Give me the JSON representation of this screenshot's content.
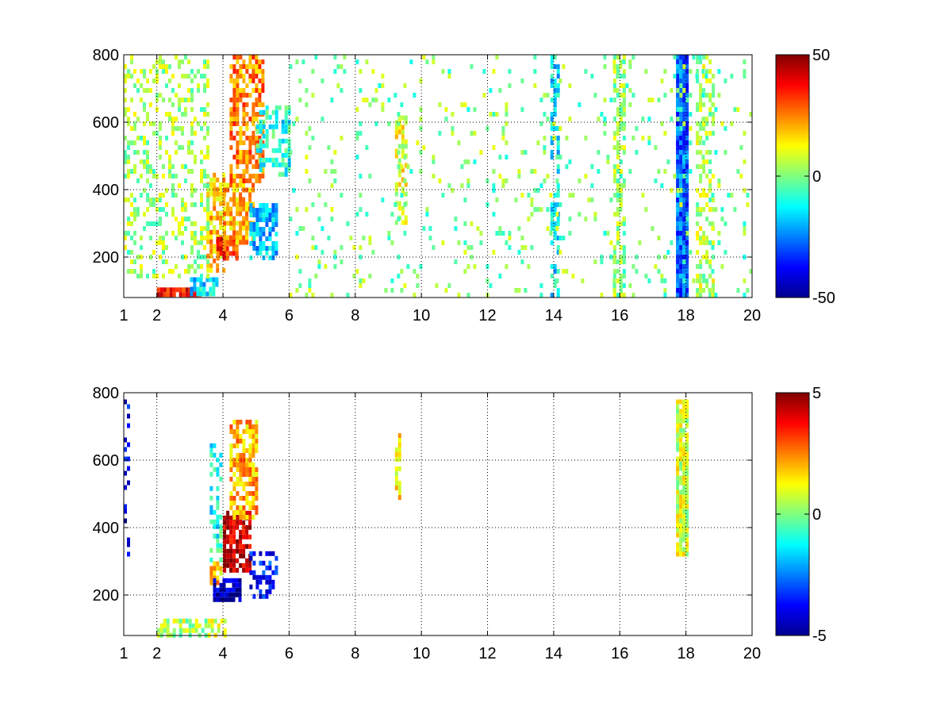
{
  "chart_data": [
    {
      "type": "heatmap",
      "title": "",
      "xlabel": "",
      "ylabel": "",
      "xlim": [
        1,
        20
      ],
      "ylim": [
        80,
        800
      ],
      "grid": true,
      "x_ticks": [
        1,
        2,
        4,
        6,
        8,
        10,
        12,
        14,
        16,
        18,
        20
      ],
      "y_ticks": [
        200,
        400,
        600,
        800
      ],
      "colorbar": {
        "min": -50,
        "max": 50,
        "ticks": [
          50,
          0,
          -50
        ],
        "colormap": "jet"
      },
      "regions": [
        {
          "x": [
            2.0,
            3.3
          ],
          "y": [
            85,
            110
          ],
          "value": 35,
          "density": 0.9
        },
        {
          "x": [
            3.0,
            3.8
          ],
          "y": [
            95,
            140
          ],
          "value": -15,
          "density": 0.7
        },
        {
          "x": [
            3.5,
            4.0
          ],
          "y": [
            160,
            450
          ],
          "value": 18,
          "density": 0.7
        },
        {
          "x": [
            3.8,
            4.4
          ],
          "y": [
            200,
            260
          ],
          "value": 33,
          "density": 0.8
        },
        {
          "x": [
            4.0,
            4.9
          ],
          "y": [
            250,
            420
          ],
          "value": 20,
          "density": 0.7
        },
        {
          "x": [
            4.2,
            5.2
          ],
          "y": [
            420,
            800
          ],
          "value": 25,
          "density": 0.65
        },
        {
          "x": [
            4.8,
            5.6
          ],
          "y": [
            200,
            360
          ],
          "value": -18,
          "density": 0.7
        },
        {
          "x": [
            5.0,
            6.0
          ],
          "y": [
            450,
            650
          ],
          "value": -10,
          "density": 0.5
        },
        {
          "x": [
            1.0,
            3.5
          ],
          "y": [
            150,
            800
          ],
          "value": 3,
          "density": 0.3
        },
        {
          "x": [
            9.2,
            9.5
          ],
          "y": [
            300,
            620
          ],
          "value": 10,
          "density": 0.6
        },
        {
          "x": [
            13.9,
            14.1
          ],
          "y": [
            80,
            800
          ],
          "value": -15,
          "density": 0.5
        },
        {
          "x": [
            15.8,
            16.1
          ],
          "y": [
            80,
            800
          ],
          "value": 2,
          "density": 0.5
        },
        {
          "x": [
            17.7,
            18.0
          ],
          "y": [
            80,
            800
          ],
          "value": -28,
          "density": 1.0
        },
        {
          "x": [
            18.3,
            18.8
          ],
          "y": [
            80,
            800
          ],
          "value": 5,
          "density": 0.45
        },
        {
          "x": [
            6.0,
            20.0
          ],
          "y": [
            80,
            800
          ],
          "value": 0,
          "density": 0.07
        }
      ]
    },
    {
      "type": "heatmap",
      "title": "",
      "xlabel": "",
      "ylabel": "",
      "xlim": [
        1,
        20
      ],
      "ylim": [
        80,
        800
      ],
      "grid": true,
      "x_ticks": [
        1,
        2,
        4,
        6,
        8,
        10,
        12,
        14,
        16,
        18,
        20
      ],
      "y_ticks": [
        200,
        400,
        600,
        800
      ],
      "colorbar": {
        "min": -5,
        "max": 5,
        "ticks": [
          5,
          0,
          -5
        ],
        "colormap": "jet"
      },
      "regions": [
        {
          "x": [
            2.0,
            4.1
          ],
          "y": [
            85,
            130
          ],
          "value": 0.5,
          "density": 0.6
        },
        {
          "x": [
            3.6,
            3.9
          ],
          "y": [
            240,
            300
          ],
          "value": 1.8,
          "density": 0.7
        },
        {
          "x": [
            3.6,
            3.9
          ],
          "y": [
            300,
            650
          ],
          "value": -1.0,
          "density": 0.4
        },
        {
          "x": [
            3.7,
            4.5
          ],
          "y": [
            190,
            250
          ],
          "value": -4.5,
          "density": 0.85
        },
        {
          "x": [
            4.0,
            4.8
          ],
          "y": [
            270,
            450
          ],
          "value": 4.3,
          "density": 0.8
        },
        {
          "x": [
            4.2,
            5.0
          ],
          "y": [
            430,
            720
          ],
          "value": 2.0,
          "density": 0.7
        },
        {
          "x": [
            4.8,
            5.6
          ],
          "y": [
            200,
            330
          ],
          "value": -3.5,
          "density": 0.45
        },
        {
          "x": [
            9.2,
            9.35
          ],
          "y": [
            470,
            680
          ],
          "value": 1.5,
          "density": 0.8
        },
        {
          "x": [
            17.7,
            18.0
          ],
          "y": [
            320,
            780
          ],
          "value": 0.8,
          "density": 0.95
        },
        {
          "x": [
            1.0,
            1.1
          ],
          "y": [
            300,
            780
          ],
          "value": -4.0,
          "density": 0.3
        }
      ]
    }
  ]
}
